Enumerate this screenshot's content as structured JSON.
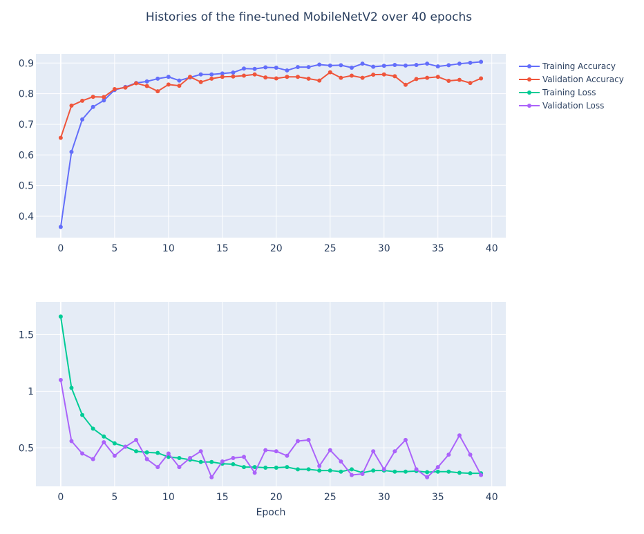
{
  "title": "Histories of the fine-tuned MobileNetV2 over 40 epochs",
  "colors": {
    "plot_bg": "#e5ecf6",
    "grid": "#ffffff",
    "text": "#2a3f5f",
    "training_accuracy": "#636efa",
    "validation_accuracy": "#ef553b",
    "training_loss": "#00cc96",
    "validation_loss": "#ab63fa"
  },
  "legend": [
    {
      "label": "Training Accuracy",
      "color_key": "training_accuracy"
    },
    {
      "label": "Validation Accuracy",
      "color_key": "validation_accuracy"
    },
    {
      "label": "Training Loss",
      "color_key": "training_loss"
    },
    {
      "label": "Validation Loss",
      "color_key": "validation_loss"
    }
  ],
  "chart_data": [
    {
      "type": "line",
      "panel": "accuracy",
      "x": [
        0,
        1,
        2,
        3,
        4,
        5,
        6,
        7,
        8,
        9,
        10,
        11,
        12,
        13,
        14,
        15,
        16,
        17,
        18,
        19,
        20,
        21,
        22,
        23,
        24,
        25,
        26,
        27,
        28,
        29,
        30,
        31,
        32,
        33,
        34,
        35,
        36,
        37,
        38,
        39
      ],
      "xlim": [
        -2.3,
        41.3
      ],
      "ylim": [
        0.33,
        0.93
      ],
      "xticks": [
        0,
        5,
        10,
        15,
        20,
        25,
        30,
        35,
        40
      ],
      "xtick_labels": [
        "0",
        "5",
        "10",
        "15",
        "20",
        "25",
        "30",
        "35",
        "40"
      ],
      "yticks": [
        0.4,
        0.5,
        0.6,
        0.7,
        0.8,
        0.9
      ],
      "ytick_labels": [
        "0.4",
        "0.5",
        "0.6",
        "0.7",
        "0.8",
        "0.9"
      ],
      "xlabel": "",
      "ylabel": "",
      "grid": true,
      "series": [
        {
          "name": "Training Accuracy",
          "color_key": "training_accuracy",
          "values": [
            0.365,
            0.61,
            0.716,
            0.757,
            0.778,
            0.812,
            0.822,
            0.835,
            0.84,
            0.849,
            0.855,
            0.843,
            0.853,
            0.863,
            0.863,
            0.866,
            0.869,
            0.882,
            0.881,
            0.886,
            0.885,
            0.876,
            0.887,
            0.887,
            0.895,
            0.892,
            0.893,
            0.885,
            0.898,
            0.888,
            0.891,
            0.894,
            0.892,
            0.894,
            0.898,
            0.889,
            0.893,
            0.898,
            0.901,
            0.904
          ]
        },
        {
          "name": "Validation Accuracy",
          "color_key": "validation_accuracy",
          "values": [
            0.656,
            0.761,
            0.777,
            0.79,
            0.789,
            0.815,
            0.82,
            0.834,
            0.825,
            0.808,
            0.83,
            0.826,
            0.855,
            0.838,
            0.849,
            0.855,
            0.856,
            0.859,
            0.863,
            0.853,
            0.85,
            0.855,
            0.855,
            0.849,
            0.843,
            0.87,
            0.852,
            0.859,
            0.852,
            0.862,
            0.863,
            0.857,
            0.829,
            0.848,
            0.852,
            0.855,
            0.842,
            0.845,
            0.835,
            0.85
          ]
        }
      ]
    },
    {
      "type": "line",
      "panel": "loss",
      "x": [
        0,
        1,
        2,
        3,
        4,
        5,
        6,
        7,
        8,
        9,
        10,
        11,
        12,
        13,
        14,
        15,
        16,
        17,
        18,
        19,
        20,
        21,
        22,
        23,
        24,
        25,
        26,
        27,
        28,
        29,
        30,
        31,
        32,
        33,
        34,
        35,
        36,
        37,
        38,
        39
      ],
      "xlim": [
        -2.3,
        41.3
      ],
      "ylim": [
        0.16,
        1.79
      ],
      "xticks": [
        0,
        5,
        10,
        15,
        20,
        25,
        30,
        35,
        40
      ],
      "xtick_labels": [
        "0",
        "5",
        "10",
        "15",
        "20",
        "25",
        "30",
        "35",
        "40"
      ],
      "yticks": [
        0.5,
        1.0,
        1.5
      ],
      "ytick_labels": [
        "0.5",
        "1",
        "1.5"
      ],
      "xlabel": "Epoch",
      "ylabel": "",
      "grid": true,
      "series": [
        {
          "name": "Training Loss",
          "color_key": "training_loss",
          "values": [
            1.66,
            1.03,
            0.79,
            0.67,
            0.6,
            0.54,
            0.51,
            0.47,
            0.46,
            0.455,
            0.42,
            0.41,
            0.395,
            0.375,
            0.375,
            0.36,
            0.355,
            0.33,
            0.33,
            0.325,
            0.325,
            0.33,
            0.31,
            0.31,
            0.3,
            0.3,
            0.29,
            0.31,
            0.28,
            0.3,
            0.3,
            0.29,
            0.29,
            0.295,
            0.285,
            0.29,
            0.29,
            0.28,
            0.275,
            0.275
          ]
        },
        {
          "name": "Validation Loss",
          "color_key": "validation_loss",
          "values": [
            1.1,
            0.56,
            0.45,
            0.4,
            0.55,
            0.43,
            0.51,
            0.57,
            0.4,
            0.33,
            0.45,
            0.33,
            0.41,
            0.47,
            0.24,
            0.38,
            0.41,
            0.42,
            0.28,
            0.48,
            0.47,
            0.43,
            0.56,
            0.57,
            0.34,
            0.48,
            0.38,
            0.26,
            0.27,
            0.47,
            0.31,
            0.47,
            0.57,
            0.31,
            0.24,
            0.33,
            0.44,
            0.61,
            0.44,
            0.26
          ]
        }
      ]
    }
  ]
}
